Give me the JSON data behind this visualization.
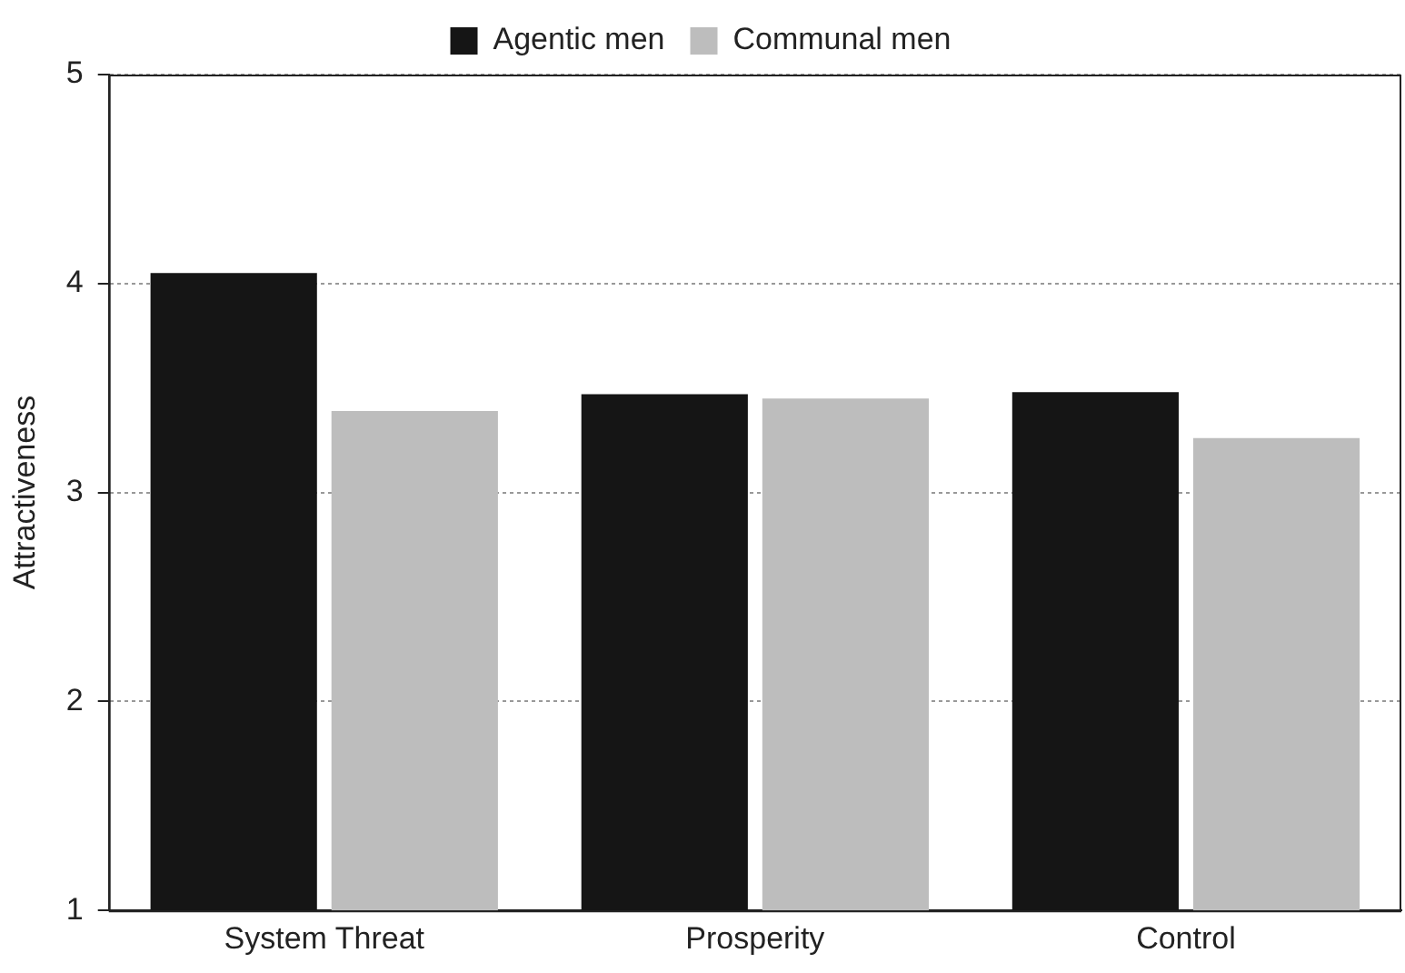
{
  "chart_data": {
    "type": "bar",
    "ylabel": "Attractiveness",
    "categories": [
      "System Threat",
      "Prosperity",
      "Control"
    ],
    "series": [
      {
        "name": "Agentic men",
        "color": "#151515",
        "values": [
          4.05,
          3.47,
          3.48
        ]
      },
      {
        "name": "Communal men",
        "color": "#bdbdbd",
        "values": [
          3.39,
          3.45,
          3.26
        ]
      }
    ],
    "ylim": [
      1,
      5
    ],
    "yticks": [
      1,
      2,
      3,
      4,
      5
    ],
    "grid": "y",
    "legend": "top"
  }
}
